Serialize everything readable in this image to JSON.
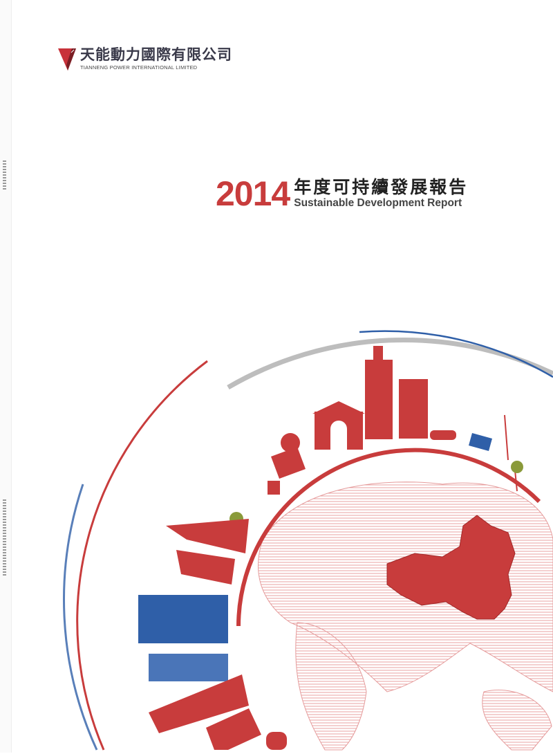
{
  "company": {
    "name_cn": "天能動力國際有限公司",
    "name_en": "TIANNENG POWER INTERNATIONAL LIMITED",
    "logo_icon": "v-shield-logo"
  },
  "report": {
    "year": "2014",
    "title_cn": "年度可持續發展報告",
    "title_en": "Sustainable Development Report"
  },
  "colors": {
    "brand_red": "#c83c3c",
    "accent_blue": "#2f5fa8",
    "arc_gray": "#b8b8b8"
  },
  "illustration": "globe-with-city-skyline"
}
